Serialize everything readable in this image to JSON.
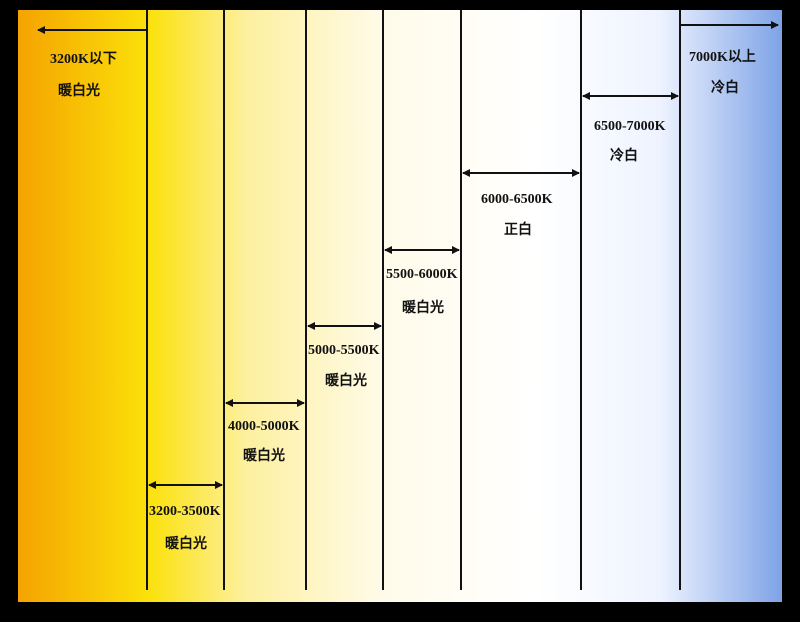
{
  "ranges": [
    {
      "label": "3200K以下",
      "description": "暖白光"
    },
    {
      "label": "3200-3500K",
      "description": "暖白光"
    },
    {
      "label": "4000-5000K",
      "description": "暖白光"
    },
    {
      "label": "5000-5500K",
      "description": "暖白光"
    },
    {
      "label": "5500-6000K",
      "description": "暖白光"
    },
    {
      "label": "6000-6500K",
      "description": "正白"
    },
    {
      "label": "6500-7000K",
      "description": "冷白"
    },
    {
      "label": "7000K以上",
      "description": "冷白"
    }
  ]
}
